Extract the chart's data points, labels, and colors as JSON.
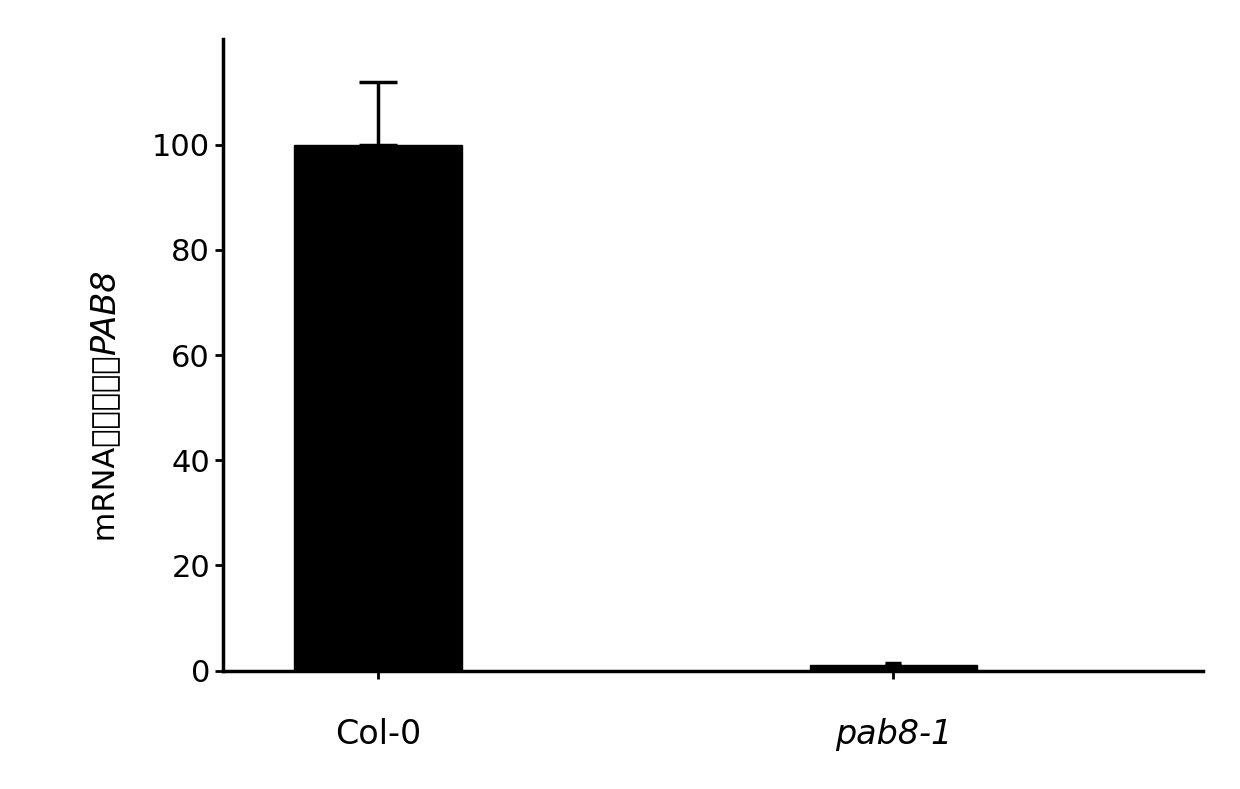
{
  "categories": [
    "Col-0",
    "pab8-1"
  ],
  "values": [
    100,
    1.0
  ],
  "errors": [
    12,
    0.5
  ],
  "bar_color": "#000000",
  "bar_width": 0.35,
  "ylim": [
    0,
    120
  ],
  "yticks": [
    0,
    20,
    40,
    60,
    80,
    100
  ],
  "background_color": "#ffffff",
  "tick_fontsize": 22,
  "label_fontsize": 22,
  "xticklabels": [
    "Col-0",
    "pab8-1"
  ],
  "xticklabels_italic": [
    false,
    true
  ],
  "errorbar_capsize": 14,
  "errorbar_linewidth": 2.5,
  "errorbar_color": "#000000",
  "ylabel_part1": "PAB8",
  "ylabel_part2": " mRNA相对表达量"
}
